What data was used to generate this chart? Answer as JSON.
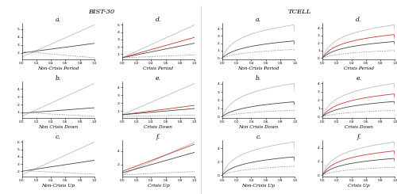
{
  "title_left": "BIST-30",
  "title_right": "TCELL",
  "figure_bg": "#ffffff",
  "line_lw": 0.6,
  "font_size_label": 4.2,
  "font_size_sublabel": 5.5,
  "font_size_title": 6.0,
  "gray_light": "#bbbbbb",
  "gray_dark": "#444444",
  "gray_lower": "#999999",
  "red_col": "#cc3333",
  "sublabels_noncris": [
    "a.",
    "b.",
    "c."
  ],
  "sublabels_cris": [
    "d.",
    "e.",
    "f."
  ],
  "xlabels_bist_nc": [
    "Non-Crisis Period",
    "Non Crisis Down",
    "Non-Crisis Up"
  ],
  "xlabels_bist_c": [
    "Crisis Period",
    "Crisis Down",
    "Crisis Up"
  ],
  "xlabels_tcell_nc": [
    "Non-Crisis Period",
    "Non Crisis Down",
    "Non-Crisis Up"
  ],
  "xlabels_tcell_c": [
    "Crisis Period",
    "Crisis Down",
    "Crisis Up"
  ]
}
